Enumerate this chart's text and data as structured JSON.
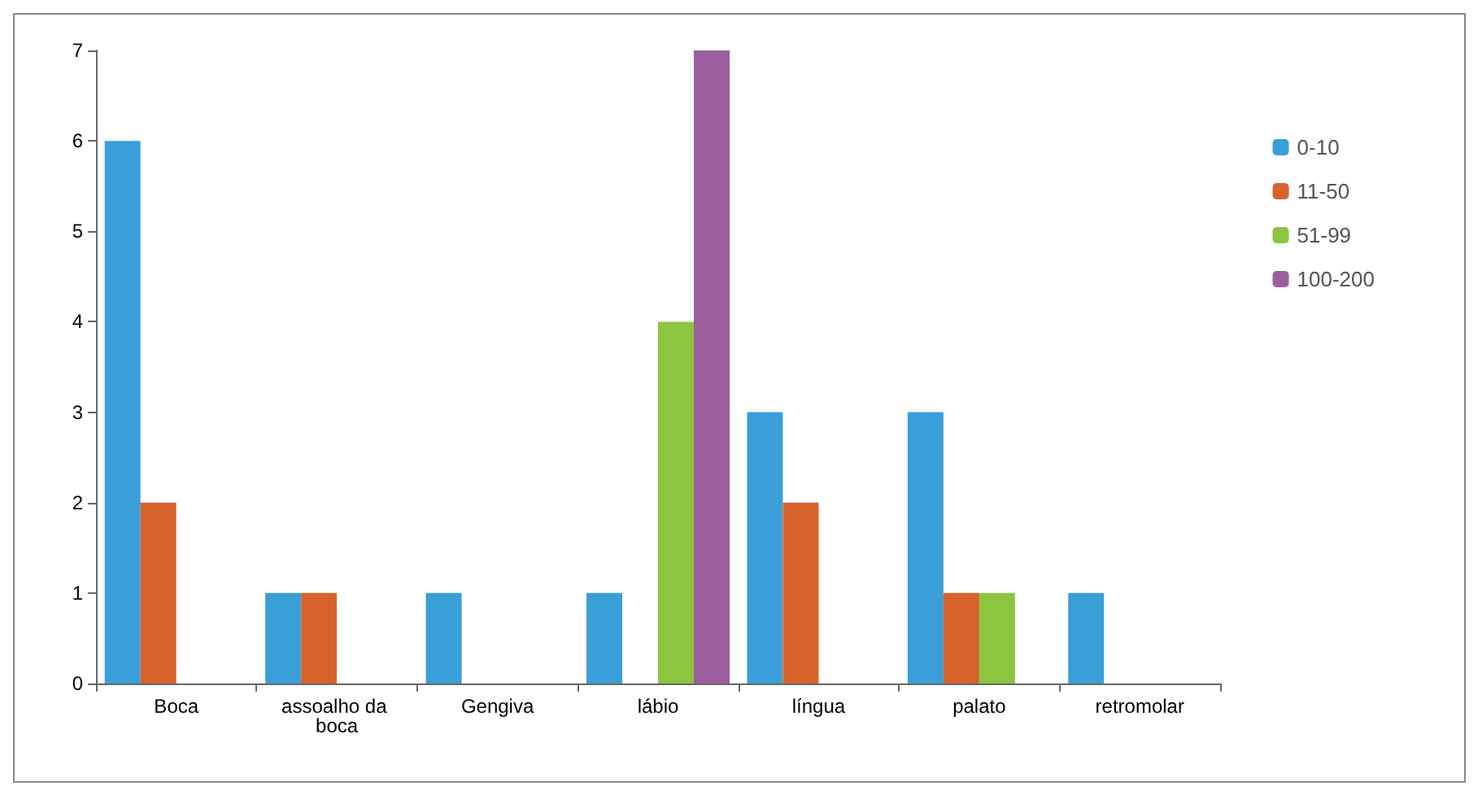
{
  "chart_data": {
    "type": "bar",
    "categories": [
      "Boca",
      "assoalho da boca",
      "Gengiva",
      "lábio",
      "língua",
      "palato",
      "retromolar"
    ],
    "series": [
      {
        "name": "0-10",
        "color": "#3a9fd8",
        "values": [
          6,
          1,
          1,
          1,
          3,
          3,
          1
        ]
      },
      {
        "name": "11-50",
        "color": "#d8622c",
        "values": [
          2,
          1,
          null,
          null,
          2,
          1,
          null
        ]
      },
      {
        "name": "51-99",
        "color": "#8cc540",
        "values": [
          null,
          null,
          null,
          4,
          null,
          1,
          null
        ]
      },
      {
        "name": "100-200",
        "color": "#9c5e9f",
        "values": [
          null,
          null,
          null,
          7,
          null,
          null,
          null
        ]
      }
    ],
    "ylim": [
      0,
      7
    ],
    "yticks": [
      0,
      1,
      2,
      3,
      4,
      5,
      6,
      7
    ],
    "grid": false,
    "legend": "top right"
  }
}
